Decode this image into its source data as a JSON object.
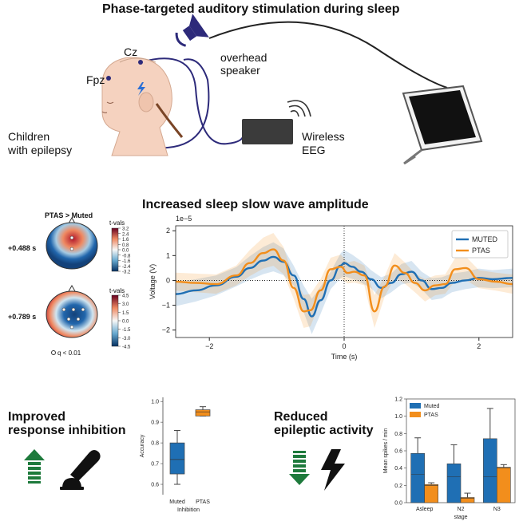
{
  "section1": {
    "title": "Phase-targeted auditory stimulation during sleep",
    "electrodes": {
      "cz": "Cz",
      "fpz": "Fpz"
    },
    "speaker": [
      "overhead",
      "speaker"
    ],
    "children": [
      "Children",
      "with epilepsy"
    ],
    "eeg": [
      "Wireless",
      "EEG"
    ]
  },
  "section2": {
    "title": "Increased sleep slow wave amplitude",
    "topo_title": "PTAS > Muted",
    "topo1": {
      "time": "+0.488 s",
      "cbar_label": "t-vals",
      "ticks": [
        "3.2",
        "2.4",
        "1.6",
        "0.8",
        "0.0",
        "-0.8",
        "-1.6",
        "-2.4",
        "-3.2"
      ]
    },
    "topo2": {
      "time": "+0.789 s",
      "cbar_label": "t-vals",
      "ticks": [
        "4.5",
        "3.0",
        "1.5",
        "0.0",
        "-1.5",
        "-3.0",
        "-4.5"
      ]
    },
    "q_note": "q < 0.01",
    "colors": {
      "muted": "#1f6fb4",
      "ptas": "#f28e1c"
    }
  },
  "section3": {
    "inhibition_title": [
      "Improved",
      "response inhibition"
    ],
    "epileptic_title": [
      "Reduced",
      "epileptic activity"
    ]
  },
  "chart_data": [
    {
      "type": "line",
      "title": "",
      "xlabel": "Time (s)",
      "ylabel": "Voltage (V)",
      "scale_label": "1e−5",
      "xlim": [
        -2.5,
        2.5
      ],
      "ylim": [
        -2.3,
        2.2
      ],
      "xticks": [
        -2,
        0,
        2
      ],
      "yticks": [
        -2,
        -1,
        0,
        1,
        2
      ],
      "legend": "top-right",
      "series": [
        {
          "name": "MUTED",
          "x": [
            -2.5,
            -2.2,
            -1.9,
            -1.6,
            -1.4,
            -1.2,
            -1.05,
            -0.9,
            -0.75,
            -0.6,
            -0.48,
            -0.35,
            -0.2,
            -0.05,
            0.0,
            0.12,
            0.25,
            0.4,
            0.55,
            0.7,
            0.85,
            1.0,
            1.15,
            1.3,
            1.45,
            1.6,
            1.8,
            2.0,
            2.2,
            2.5
          ],
          "y": [
            -0.55,
            -0.4,
            -0.2,
            0.15,
            0.5,
            0.8,
            0.95,
            0.75,
            0.2,
            -0.75,
            -1.45,
            -0.8,
            0.0,
            0.6,
            0.7,
            0.55,
            0.35,
            0.05,
            -0.3,
            -0.1,
            0.25,
            0.35,
            0.0,
            -0.35,
            -0.3,
            -0.1,
            0.0,
            0.1,
            0.05,
            0.1
          ]
        },
        {
          "name": "PTAS",
          "x": [
            -2.5,
            -2.2,
            -1.9,
            -1.6,
            -1.4,
            -1.2,
            -1.05,
            -0.9,
            -0.75,
            -0.6,
            -0.5,
            -0.35,
            -0.2,
            -0.05,
            0.05,
            0.15,
            0.3,
            0.45,
            0.6,
            0.75,
            0.9,
            1.05,
            1.2,
            1.35,
            1.5,
            1.65,
            1.8,
            2.0,
            2.25,
            2.5
          ],
          "y": [
            -0.05,
            -0.1,
            -0.15,
            0.2,
            0.7,
            1.1,
            1.25,
            0.8,
            -0.3,
            -1.25,
            -1.2,
            -0.4,
            0.45,
            0.55,
            0.3,
            0.35,
            0.2,
            -1.25,
            -0.25,
            0.6,
            0.3,
            -0.1,
            -0.4,
            -0.2,
            -0.15,
            0.45,
            0.5,
            0.05,
            -0.05,
            -0.15
          ]
        }
      ]
    },
    {
      "type": "box",
      "title": "",
      "xlabel": "Inhibition",
      "ylabel": "Accuracy",
      "ylim": [
        0.55,
        1.02
      ],
      "yticks": [
        0.6,
        0.7,
        0.8,
        0.9,
        1.0
      ],
      "categories": [
        "Muted",
        "PTAS"
      ],
      "boxes": [
        {
          "name": "Muted",
          "q1": 0.65,
          "median": 0.72,
          "q3": 0.8,
          "whisker_low": 0.6,
          "whisker_high": 0.86
        },
        {
          "name": "PTAS",
          "q1": 0.93,
          "median": 0.95,
          "q3": 0.96,
          "whisker_low": 0.93,
          "whisker_high": 0.975
        }
      ]
    },
    {
      "type": "bar",
      "title": "",
      "xlabel": "stage",
      "ylabel": "Mean spikes / min",
      "ylim": [
        0,
        1.2
      ],
      "yticks": [
        0.0,
        0.2,
        0.4,
        0.6,
        0.8,
        1.0,
        1.2
      ],
      "categories": [
        "Asleep",
        "N2",
        "N3"
      ],
      "legend": "top-left",
      "series": [
        {
          "name": "Muted",
          "values": [
            0.57,
            0.45,
            0.74
          ],
          "medians": [
            0.33,
            0.3,
            0.3
          ],
          "err_high": [
            0.75,
            0.67,
            1.09
          ]
        },
        {
          "name": "PTAS",
          "values": [
            0.21,
            0.06,
            0.41
          ],
          "medians": [
            0.2,
            0.05,
            0.4
          ],
          "err_high": [
            0.23,
            0.11,
            0.44
          ]
        }
      ]
    }
  ]
}
